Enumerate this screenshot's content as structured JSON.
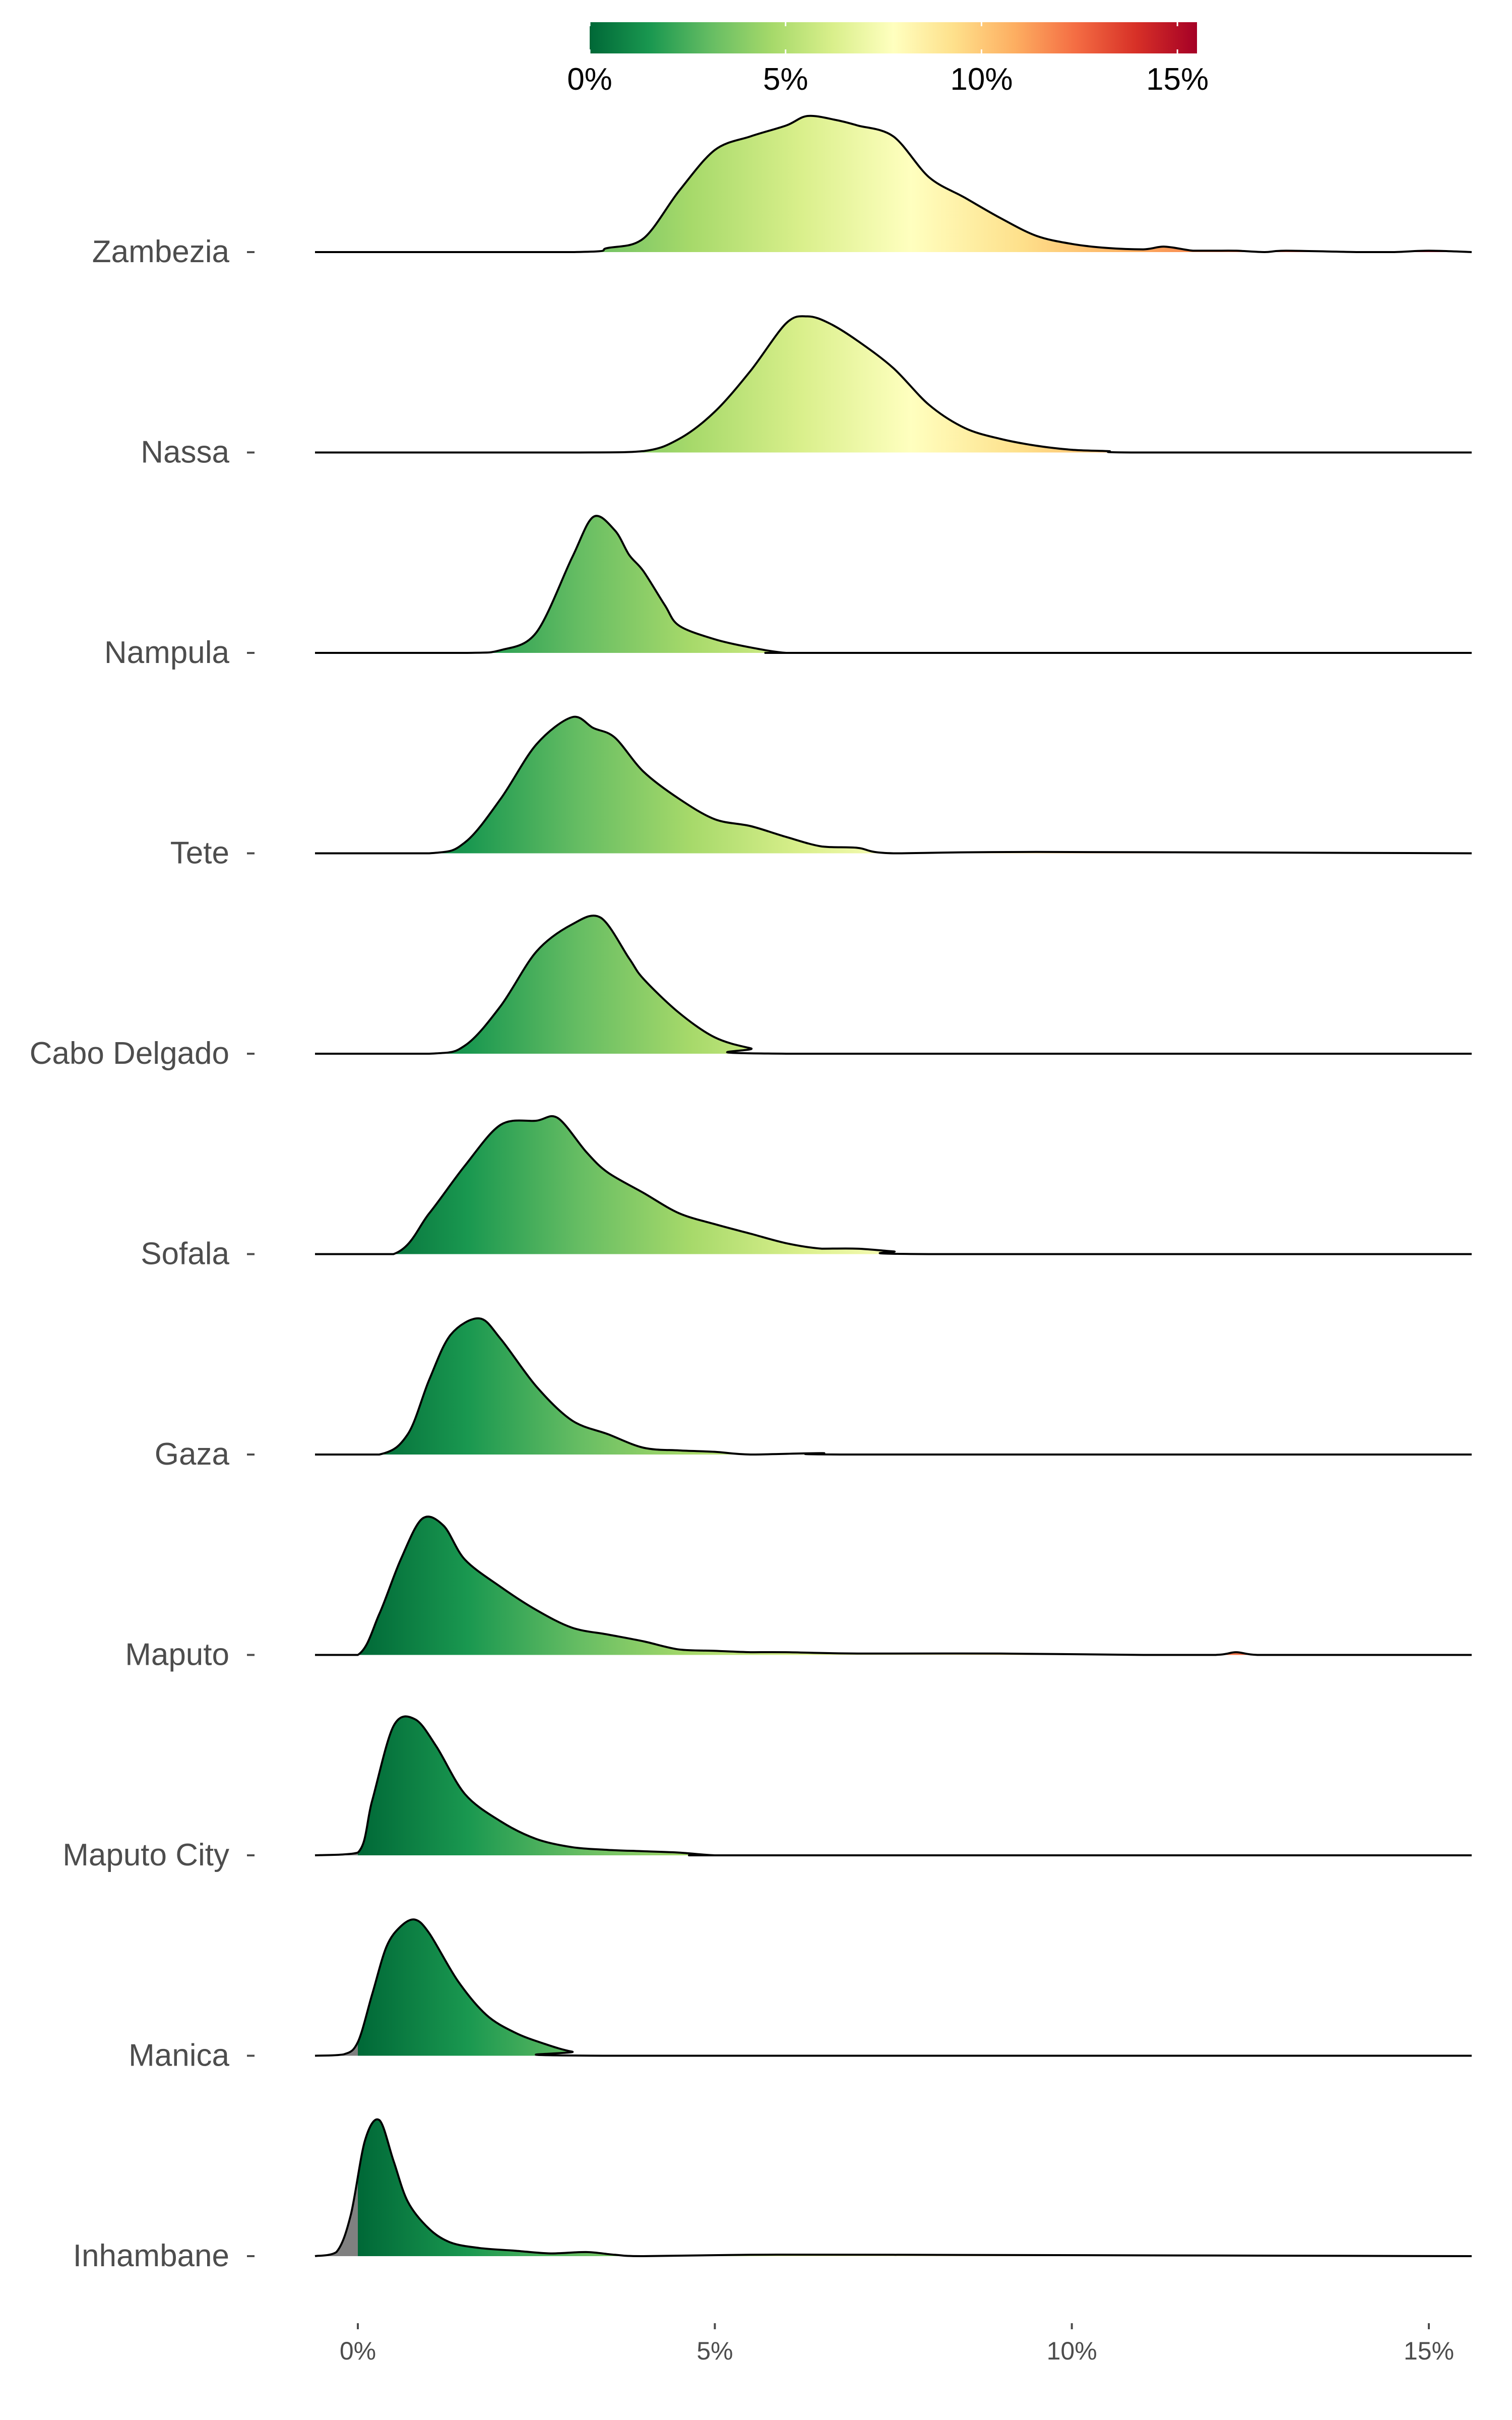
{
  "chart_data": {
    "type": "ridgeline",
    "title": "",
    "xlabel": "",
    "ylabel": "",
    "x_unit": "percent",
    "xlim": [
      -0.6,
      15.6
    ],
    "x_ticks": [
      0,
      5,
      10,
      15
    ],
    "x_tick_labels": [
      "0%",
      "5%",
      "10%",
      "15%"
    ],
    "colorbar": {
      "position": "top",
      "range": [
        0,
        15.5
      ],
      "ticks": [
        0,
        5,
        10,
        15
      ],
      "tick_labels": [
        "0%",
        "5%",
        "10%",
        "15%"
      ],
      "colors": [
        "#006837",
        "#1a9850",
        "#66bd63",
        "#a6d96a",
        "#d9ef8b",
        "#ffffbf",
        "#fee08b",
        "#fdae61",
        "#f46d43",
        "#d73027",
        "#a50026"
      ]
    },
    "na_fill_color": "#808080",
    "grid": false,
    "series": [
      {
        "name": "Zambezia",
        "x": [
          -0.6,
          3.0,
          3.5,
          4.0,
          4.5,
          5.0,
          5.5,
          6.0,
          6.3,
          6.7,
          7.0,
          7.5,
          8.0,
          8.5,
          9.0,
          9.5,
          10.0,
          10.5,
          11.0,
          11.3,
          11.7,
          12.0,
          12.3,
          12.7,
          13.0,
          14.0,
          14.5,
          15.0,
          15.6
        ],
        "y": [
          0,
          0,
          0.03,
          0.1,
          0.45,
          0.75,
          0.85,
          0.93,
          1.0,
          0.97,
          0.93,
          0.85,
          0.55,
          0.4,
          0.25,
          0.12,
          0.06,
          0.03,
          0.02,
          0.04,
          0.01,
          0.01,
          0.01,
          0.0,
          0.01,
          0.0,
          0.0,
          0.01,
          0
        ]
      },
      {
        "name": "Nassa",
        "x": [
          -0.6,
          3.0,
          4.0,
          4.5,
          5.0,
          5.5,
          6.0,
          6.3,
          6.6,
          7.0,
          7.5,
          8.0,
          8.5,
          9.0,
          9.5,
          10.0,
          10.5,
          11.0,
          15.6
        ],
        "y": [
          0,
          0,
          0.01,
          0.1,
          0.3,
          0.6,
          0.95,
          1.0,
          0.95,
          0.82,
          0.62,
          0.35,
          0.18,
          0.1,
          0.05,
          0.02,
          0.01,
          0.0,
          0
        ]
      },
      {
        "name": "Nampula",
        "x": [
          -0.6,
          1.5,
          2.0,
          2.5,
          3.0,
          3.3,
          3.6,
          3.8,
          4.0,
          4.3,
          4.5,
          5.0,
          5.5,
          6.0,
          6.5,
          15.6
        ],
        "y": [
          0,
          0,
          0.02,
          0.15,
          0.7,
          1.0,
          0.9,
          0.72,
          0.6,
          0.35,
          0.2,
          0.1,
          0.04,
          0.0,
          0.0,
          0
        ]
      },
      {
        "name": "Tete",
        "x": [
          -0.6,
          1.0,
          1.5,
          2.0,
          2.5,
          3.0,
          3.3,
          3.6,
          4.0,
          4.5,
          5.0,
          5.5,
          6.0,
          6.5,
          7.0,
          7.5,
          9.5,
          15.6
        ],
        "y": [
          0,
          0,
          0.08,
          0.4,
          0.8,
          1.0,
          0.92,
          0.85,
          0.6,
          0.4,
          0.25,
          0.2,
          0.12,
          0.05,
          0.04,
          0.0,
          0.01,
          0
        ]
      },
      {
        "name": "Cabo Delgado",
        "x": [
          -0.6,
          1.0,
          1.5,
          2.0,
          2.5,
          3.0,
          3.4,
          3.8,
          4.0,
          4.5,
          5.0,
          5.5,
          6.0,
          15.6
        ],
        "y": [
          0,
          0,
          0.06,
          0.35,
          0.75,
          0.95,
          1.0,
          0.7,
          0.55,
          0.3,
          0.12,
          0.04,
          0.0,
          0
        ]
      },
      {
        "name": "Sofala",
        "x": [
          -0.6,
          0.5,
          1.0,
          1.5,
          2.0,
          2.5,
          2.8,
          3.2,
          3.5,
          4.0,
          4.5,
          5.0,
          5.5,
          6.0,
          6.5,
          7.0,
          7.5,
          8.0,
          15.6
        ],
        "y": [
          0,
          0,
          0.3,
          0.65,
          0.95,
          0.98,
          1.0,
          0.75,
          0.6,
          0.45,
          0.3,
          0.22,
          0.15,
          0.08,
          0.04,
          0.04,
          0.02,
          0.0,
          0
        ]
      },
      {
        "name": "Gaza",
        "x": [
          -0.6,
          0.3,
          0.7,
          1.0,
          1.3,
          1.7,
          2.0,
          2.5,
          3.0,
          3.5,
          4.0,
          4.5,
          5.0,
          5.5,
          6.5,
          7.0,
          15.6
        ],
        "y": [
          0,
          0,
          0.15,
          0.55,
          0.88,
          1.0,
          0.85,
          0.5,
          0.25,
          0.15,
          0.05,
          0.03,
          0.02,
          0.0,
          0.01,
          0.0,
          0
        ]
      },
      {
        "name": "Maputo",
        "x": [
          -0.6,
          0.0,
          0.3,
          0.6,
          0.9,
          1.2,
          1.5,
          2.0,
          2.5,
          3.0,
          3.5,
          4.0,
          4.5,
          5.0,
          5.5,
          6.0,
          7.0,
          9.0,
          11.0,
          12.0,
          12.3,
          12.6,
          13.5,
          15.6
        ],
        "y": [
          0,
          0,
          0.3,
          0.7,
          1.0,
          0.95,
          0.7,
          0.5,
          0.33,
          0.2,
          0.15,
          0.1,
          0.04,
          0.03,
          0.02,
          0.02,
          0.01,
          0.01,
          0.0,
          0.0,
          0.02,
          0.0,
          0.0,
          0
        ]
      },
      {
        "name": "Maputo City",
        "x": [
          -0.6,
          0.0,
          0.2,
          0.5,
          0.8,
          1.1,
          1.5,
          2.0,
          2.5,
          3.0,
          3.5,
          4.0,
          4.5,
          5.0,
          5.5,
          15.6
        ],
        "y": [
          0,
          0.02,
          0.4,
          0.95,
          1.0,
          0.8,
          0.45,
          0.25,
          0.12,
          0.06,
          0.04,
          0.03,
          0.02,
          0.0,
          0.0,
          0
        ]
      },
      {
        "name": "Manica",
        "x": [
          -0.6,
          -0.2,
          0.0,
          0.2,
          0.4,
          0.6,
          0.8,
          1.0,
          1.4,
          1.8,
          2.2,
          2.6,
          3.0,
          3.5,
          15.6
        ],
        "y": [
          0,
          0.01,
          0.1,
          0.45,
          0.8,
          0.95,
          1.0,
          0.9,
          0.55,
          0.3,
          0.17,
          0.09,
          0.03,
          0.0,
          0
        ]
      },
      {
        "name": "Inhambane",
        "x": [
          -0.6,
          -0.3,
          -0.1,
          0.1,
          0.3,
          0.5,
          0.7,
          1.0,
          1.3,
          1.7,
          2.2,
          2.7,
          3.2,
          3.6,
          4.0,
          5.5,
          7.5,
          15.6
        ],
        "y": [
          0,
          0.03,
          0.3,
          0.85,
          1.0,
          0.7,
          0.4,
          0.2,
          0.1,
          0.06,
          0.04,
          0.02,
          0.03,
          0.01,
          0.0,
          0.01,
          0.01,
          0
        ]
      }
    ]
  }
}
